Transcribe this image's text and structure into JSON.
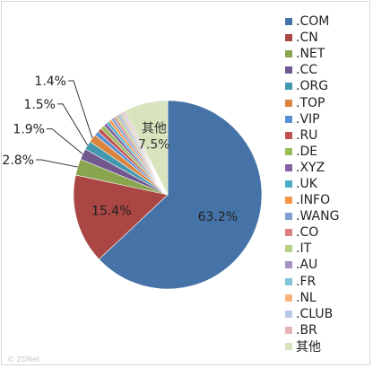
{
  "chart_data": {
    "type": "pie",
    "title": "",
    "categories": [
      ".COM",
      ".CN",
      ".NET",
      ".CC",
      ".ORG",
      ".TOP",
      ".VIP",
      ".RU",
      ".DE",
      ".XYZ",
      ".UK",
      ".INFO",
      ".WANG",
      ".CO",
      ".IT",
      ".AU",
      ".FR",
      ".NL",
      ".CLUB",
      ".BR",
      "其他"
    ],
    "values": [
      63.2,
      15.4,
      2.8,
      1.9,
      1.5,
      1.4,
      0.8,
      0.7,
      0.7,
      0.6,
      0.5,
      0.5,
      0.5,
      0.4,
      0.4,
      0.3,
      0.3,
      0.3,
      0.3,
      0.3,
      7.5
    ],
    "value_labels": [
      "63.2%",
      "15.4%",
      "2.8%",
      "1.9%",
      "1.5%",
      "1.4%",
      "",
      "",
      "",
      "",
      "",
      "",
      "",
      "",
      "",
      "",
      "",
      "",
      "",
      "",
      "7.5%"
    ],
    "colors": [
      "#4573a7",
      "#aa4643",
      "#89a54e",
      "#71588f",
      "#4198af",
      "#db843d",
      "#5b8fd0",
      "#c0504d",
      "#9bbb59",
      "#8064a2",
      "#4bacc6",
      "#f79646",
      "#7f9fcf",
      "#d9827f",
      "#b7d085",
      "#a38fc1",
      "#7fc4d8",
      "#fab27b",
      "#b7c7e6",
      "#e3b7b6",
      "#d7e4bd"
    ],
    "legend_position": "right"
  },
  "footer_caption": "© ZDNet"
}
